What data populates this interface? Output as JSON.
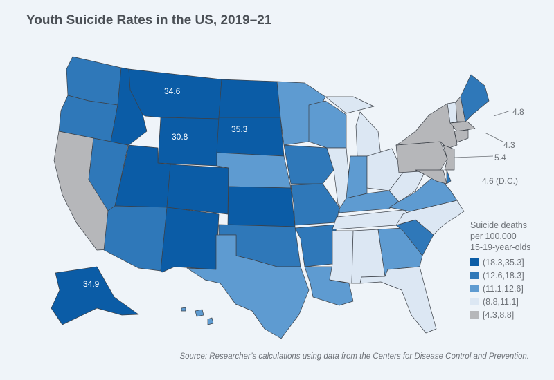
{
  "title": "Youth Suicide Rates in the US, 2019–21",
  "legend": {
    "title_lines": [
      "Suicide deaths",
      "per 100,000",
      "15-19-year-olds"
    ],
    "bins": [
      {
        "label": "(18.3,35.3]",
        "color": "#0b5ca6"
      },
      {
        "label": "(12.6,18.3]",
        "color": "#2f78b9"
      },
      {
        "label": "(11.1,12.6]",
        "color": "#5e9bd1"
      },
      {
        "label": "(8.8,11.1]",
        "color": "#dce7f3"
      },
      {
        "label": "[4.3,8.8]",
        "color": "#b6b7ba"
      }
    ]
  },
  "state_bins": {
    "MT": 0,
    "ID": 0,
    "WY": 0,
    "ND": 0,
    "SD": 0,
    "UT": 0,
    "CO": 0,
    "NM": 0,
    "KS": 0,
    "AK": 0,
    "WA": 1,
    "OR": 1,
    "NV": 1,
    "AZ": 1,
    "OK": 1,
    "IA": 1,
    "MO": 1,
    "AR": 1,
    "SC": 1,
    "ME": 1,
    "DE": 1,
    "NE": 2,
    "MN": 2,
    "WI": 2,
    "TX": 2,
    "LA": 2,
    "IN": 2,
    "KY": 2,
    "VA": 2,
    "GA": 2,
    "HI": 2,
    "IL": 3,
    "MI": 3,
    "MIU": 3,
    "OH": 3,
    "WV": 3,
    "TN": 3,
    "NC": 3,
    "MS": 3,
    "AL": 3,
    "FL": 3,
    "VT": 3,
    "CA": 4,
    "NY": 4,
    "PA": 4,
    "NJ": 4,
    "MD": 4,
    "NH": 4,
    "MA": 4,
    "CT": 4
  },
  "value_labels": {
    "MT": "34.6",
    "SD": "35.3",
    "WY": "30.8",
    "AK": "34.9"
  },
  "callouts": {
    "MA": "4.8",
    "RI": "4.3",
    "NJ": "5.4",
    "DC": "4.6 (D.C.)"
  },
  "source": "Source: Researcher’s calculations using data from the Centers for Disease Control and Prevention."
}
